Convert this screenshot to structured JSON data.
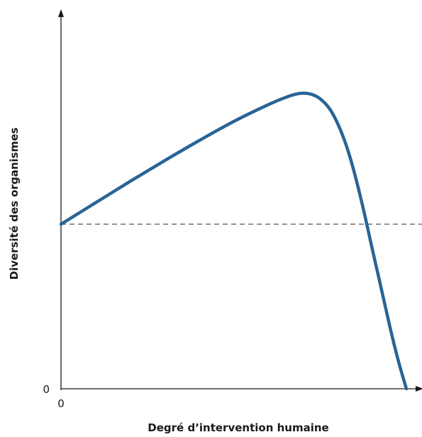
{
  "chart_data": {
    "type": "line",
    "title": "",
    "xlabel": "Degré d’intervention humaine",
    "ylabel": "Diversité des organismes",
    "x_tick_labels": [
      "0"
    ],
    "y_tick_labels": [
      "0"
    ],
    "grid": false,
    "legend": "none",
    "xlim": [
      0,
      100
    ],
    "ylim": [
      0,
      100
    ],
    "reference_line": {
      "y": 50,
      "style": "dashed"
    },
    "series": [
      {
        "color": "#2a6496",
        "x": [
          0,
          10,
          20,
          30,
          40,
          50,
          60,
          65,
          68,
          70,
          72,
          74,
          76,
          78,
          80,
          82,
          84,
          86,
          88,
          90,
          92,
          94,
          96,
          98,
          100
        ],
        "y": [
          50,
          56.5,
          63,
          69.3,
          75.4,
          81.2,
          86.3,
          88.5,
          89.5,
          89.8,
          89.6,
          88.8,
          87.2,
          84.7,
          80.8,
          75.7,
          69.2,
          61.3,
          52.5,
          43,
          33.8,
          24.5,
          15.4,
          7.2,
          0
        ]
      }
    ]
  }
}
